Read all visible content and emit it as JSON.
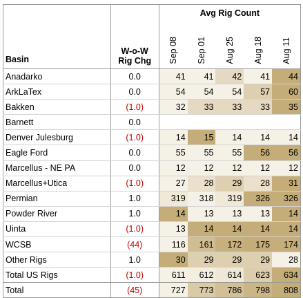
{
  "header": {
    "avg_title": "Avg Rig Count",
    "basin": "Basin",
    "wow_line1": "W-o-W",
    "wow_line2": "Rig Chg",
    "dates": [
      "Sep 08",
      "Sep 01",
      "Aug 25",
      "Aug 18",
      "Aug 11"
    ]
  },
  "rows": [
    {
      "basin": "Anadarko",
      "wow": "0.0",
      "neg": false,
      "values": [
        41,
        41,
        42,
        41,
        44
      ]
    },
    {
      "basin": "ArkLaTex",
      "wow": "0.0",
      "neg": false,
      "values": [
        54,
        54,
        54,
        57,
        60
      ]
    },
    {
      "basin": "Bakken",
      "wow": "(1.0)",
      "neg": true,
      "values": [
        32,
        33,
        33,
        33,
        35
      ]
    },
    {
      "basin": "Barnett",
      "wow": "0.0",
      "neg": false,
      "values": [
        null,
        null,
        null,
        null,
        null
      ]
    },
    {
      "basin": "Denver Julesburg",
      "wow": "(1.0)",
      "neg": true,
      "values": [
        14,
        15,
        14,
        14,
        14
      ]
    },
    {
      "basin": "Eagle Ford",
      "wow": "0.0",
      "neg": false,
      "values": [
        55,
        55,
        55,
        56,
        56
      ]
    },
    {
      "basin": "Marcellus - NE PA",
      "wow": "0.0",
      "neg": false,
      "values": [
        12,
        12,
        12,
        12,
        12
      ]
    },
    {
      "basin": "Marcellus+Utica",
      "wow": "(1.0)",
      "neg": true,
      "values": [
        27,
        28,
        29,
        28,
        31
      ]
    },
    {
      "basin": "Permian",
      "wow": "1.0",
      "neg": false,
      "values": [
        319,
        318,
        319,
        326,
        326
      ]
    },
    {
      "basin": "Powder River",
      "wow": "1.0",
      "neg": false,
      "values": [
        14,
        13,
        13,
        13,
        14
      ]
    },
    {
      "basin": "Uinta",
      "wow": "(1.0)",
      "neg": true,
      "values": [
        13,
        14,
        14,
        14,
        14
      ]
    },
    {
      "basin": "WCSB",
      "wow": "(44)",
      "neg": true,
      "values": [
        116,
        161,
        172,
        175,
        174
      ]
    },
    {
      "basin": "Other Rigs",
      "wow": "1.0",
      "neg": false,
      "values": [
        30,
        29,
        29,
        29,
        28
      ]
    }
  ],
  "total_us": {
    "basin": "Total US Rigs",
    "wow": "(1.0)",
    "neg": true,
    "values": [
      611,
      612,
      614,
      623,
      634
    ]
  },
  "total": {
    "basin": "Total",
    "wow": "(45)",
    "neg": true,
    "values": [
      727,
      773,
      786,
      798,
      808
    ]
  },
  "colors": {
    "heat_low": "#f6f1e6",
    "heat_high": "#c4ad78",
    "negative": "#c00000"
  }
}
